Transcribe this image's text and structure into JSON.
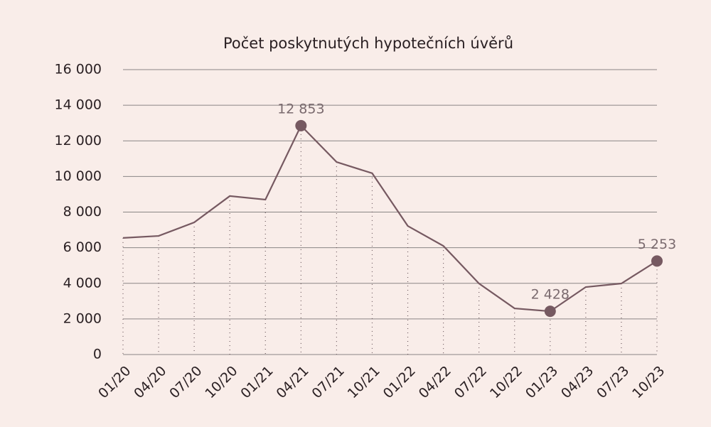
{
  "chart_data": {
    "type": "line",
    "title": "Počet poskytnutých hypotečních úvěrů",
    "categories": [
      "01/20",
      "04/20",
      "07/20",
      "10/20",
      "01/21",
      "04/21",
      "07/21",
      "10/21",
      "01/22",
      "04/22",
      "07/22",
      "10/22",
      "01/23",
      "04/23",
      "07/23",
      "10/23"
    ],
    "series": [
      {
        "name": "Počet poskytnutých hypotečních úvěrů",
        "color": "#765961",
        "values": [
          6550,
          6660,
          7420,
          8900,
          8700,
          12853,
          10810,
          10180,
          7220,
          6100,
          3990,
          2590,
          2428,
          3790,
          3990,
          5253
        ],
        "value_labels": [
          null,
          null,
          null,
          null,
          null,
          "12 853",
          null,
          null,
          null,
          null,
          null,
          null,
          "2 428",
          null,
          null,
          "5 253"
        ]
      }
    ],
    "ylim": [
      0,
      16000
    ],
    "yticks": [
      0,
      {
        "value": 2000,
        "label": "2 000"
      },
      {
        "value": 4000,
        "label": "4 000"
      },
      {
        "value": 6000,
        "label": "6 000"
      },
      {
        "value": 8000,
        "label": "8 000"
      },
      {
        "value": 10000,
        "label": "10 000"
      },
      {
        "value": 12000,
        "label": "12 000"
      },
      {
        "value": 14000,
        "label": "14 000"
      },
      {
        "value": 16000,
        "label": "16 000"
      }
    ],
    "grid": true
  }
}
